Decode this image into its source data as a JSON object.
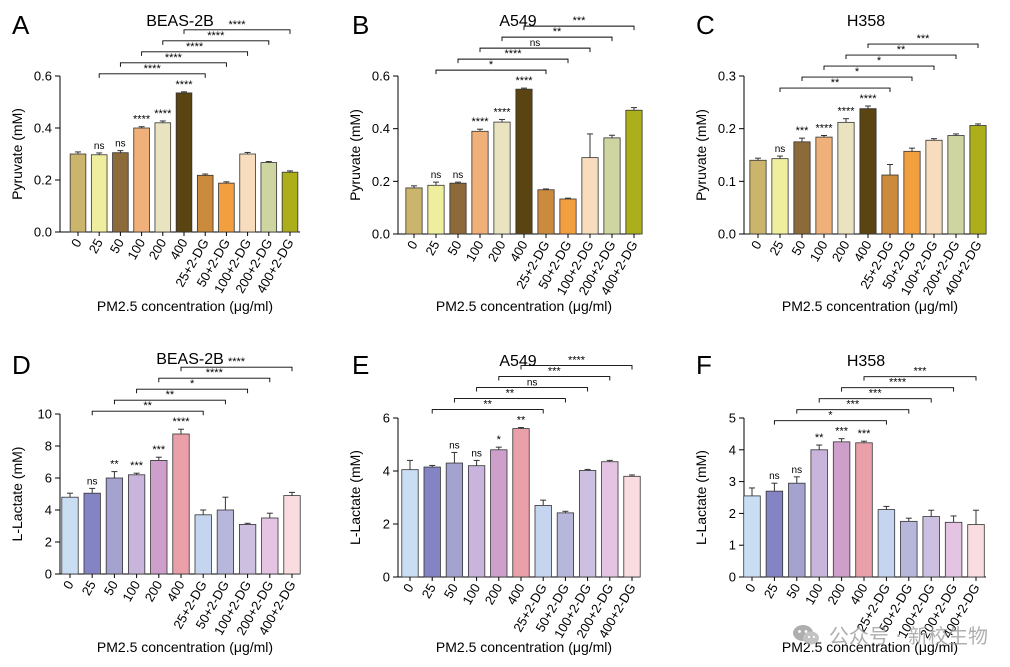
{
  "figure": {
    "watermark_text": "公众号 · 新校生物",
    "panels": [
      {
        "letter": "A",
        "chart_data": {
          "type": "bar",
          "title": "BEAS-2B",
          "ylabel": "Pyruvate (mM)",
          "xlabel": "PM2.5 concentration (μg/ml)",
          "ylim": [
            0,
            0.6
          ],
          "yticks": [
            0.0,
            0.2,
            0.4,
            0.6
          ],
          "ytick_labels": [
            "0.0",
            "0.2",
            "0.4",
            "0.6"
          ],
          "categories": [
            "0",
            "25",
            "50",
            "100",
            "200",
            "400",
            "25+2-DG",
            "50+2-DG",
            "100+2-DG",
            "200+2-DG",
            "400+2-DG"
          ],
          "values": [
            0.3,
            0.297,
            0.305,
            0.4,
            0.42,
            0.535,
            0.218,
            0.188,
            0.3,
            0.267,
            0.23
          ],
          "errors": [
            0.008,
            0.007,
            0.008,
            0.005,
            0.007,
            0.004,
            0.005,
            0.005,
            0.006,
            0.004,
            0.005
          ],
          "colors": [
            "#CBB46C",
            "#EFEE9E",
            "#8C6A3A",
            "#F0B079",
            "#E9E3C0",
            "#5A4412",
            "#CC8A3C",
            "#F29F3F",
            "#F7DCBD",
            "#CFD5A0",
            "#ACAE1C"
          ],
          "bar_labels": [
            "",
            "ns",
            "ns",
            "****",
            "****",
            "****",
            "",
            "",
            "",
            "",
            ""
          ],
          "brackets": [
            {
              "from": 1,
              "to": 6,
              "label": "****"
            },
            {
              "from": 2,
              "to": 7,
              "label": "****"
            },
            {
              "from": 3,
              "to": 8,
              "label": "****"
            },
            {
              "from": 4,
              "to": 9,
              "label": "****"
            },
            {
              "from": 5,
              "to": 10,
              "label": "****"
            }
          ]
        }
      },
      {
        "letter": "B",
        "chart_data": {
          "type": "bar",
          "title": "A549",
          "ylabel": "Pyruvate (mM)",
          "xlabel": "PM2.5 concentration (μg/ml)",
          "ylim": [
            0,
            0.6
          ],
          "yticks": [
            0.0,
            0.2,
            0.4,
            0.6
          ],
          "ytick_labels": [
            "0.0",
            "0.2",
            "0.4",
            "0.6"
          ],
          "categories": [
            "0",
            "25",
            "50",
            "100",
            "200",
            "400",
            "25+2-DG",
            "50+2-DG",
            "100+2-DG",
            "200+2-DG",
            "400+2-DG"
          ],
          "values": [
            0.175,
            0.185,
            0.193,
            0.39,
            0.425,
            0.55,
            0.168,
            0.133,
            0.29,
            0.365,
            0.47
          ],
          "errors": [
            0.008,
            0.012,
            0.004,
            0.008,
            0.01,
            0.004,
            0.003,
            0.003,
            0.09,
            0.01,
            0.01
          ],
          "colors": [
            "#CBB46C",
            "#EFEE9E",
            "#8C6A3A",
            "#F0B079",
            "#E9E3C0",
            "#5A4412",
            "#CC8A3C",
            "#F29F3F",
            "#F7DCBD",
            "#CFD5A0",
            "#ACAE1C"
          ],
          "bar_labels": [
            "",
            "ns",
            "ns",
            "****",
            "****",
            "****",
            "",
            "",
            "",
            "",
            ""
          ],
          "brackets": [
            {
              "from": 1,
              "to": 6,
              "label": "*"
            },
            {
              "from": 2,
              "to": 7,
              "label": "****"
            },
            {
              "from": 3,
              "to": 8,
              "label": "ns"
            },
            {
              "from": 4,
              "to": 9,
              "label": "**"
            },
            {
              "from": 5,
              "to": 10,
              "label": "***"
            }
          ]
        }
      },
      {
        "letter": "C",
        "chart_data": {
          "type": "bar",
          "title": "H358",
          "ylabel": "Pyruvate (mM)",
          "xlabel": "PM2.5 concentration (μg/ml)",
          "ylim": [
            0,
            0.3
          ],
          "yticks": [
            0.0,
            0.1,
            0.2,
            0.3
          ],
          "ytick_labels": [
            "0.0",
            "0.1",
            "0.2",
            "0.3"
          ],
          "categories": [
            "0",
            "25",
            "50",
            "100",
            "200",
            "400",
            "25+2-DG",
            "50+2-DG",
            "100+2-DG",
            "200+2-DG",
            "400+2-DG"
          ],
          "values": [
            0.14,
            0.143,
            0.175,
            0.184,
            0.212,
            0.238,
            0.112,
            0.157,
            0.178,
            0.187,
            0.206
          ],
          "errors": [
            0.004,
            0.005,
            0.007,
            0.003,
            0.007,
            0.005,
            0.02,
            0.006,
            0.003,
            0.003,
            0.003
          ],
          "colors": [
            "#CBB46C",
            "#EFEE9E",
            "#8C6A3A",
            "#F0B079",
            "#E9E3C0",
            "#5A4412",
            "#CC8A3C",
            "#F29F3F",
            "#F7DCBD",
            "#CFD5A0",
            "#ACAE1C"
          ],
          "bar_labels": [
            "",
            "ns",
            "***",
            "****",
            "****",
            "****",
            "",
            "",
            "",
            "",
            ""
          ],
          "brackets": [
            {
              "from": 1,
              "to": 6,
              "label": "**"
            },
            {
              "from": 2,
              "to": 7,
              "label": "*"
            },
            {
              "from": 3,
              "to": 8,
              "label": "*"
            },
            {
              "from": 4,
              "to": 9,
              "label": "**"
            },
            {
              "from": 5,
              "to": 10,
              "label": "***"
            }
          ]
        }
      },
      {
        "letter": "D",
        "chart_data": {
          "type": "bar",
          "title": "BEAS-2B",
          "ylabel": "L-Lactate (mM)",
          "xlabel": "PM2.5 concentration (μg/ml)",
          "ylim": [
            0,
            10
          ],
          "yticks": [
            0,
            2,
            4,
            6,
            8,
            10
          ],
          "ytick_labels": [
            "0",
            "2",
            "4",
            "6",
            "8",
            "10"
          ],
          "categories": [
            "0",
            "25",
            "50",
            "100",
            "200",
            "400",
            "25+2-DG",
            "50+2-DG",
            "100+2-DG",
            "200+2-DG",
            "400+2-DG"
          ],
          "values": [
            4.8,
            5.05,
            6.0,
            6.2,
            7.1,
            8.75,
            3.7,
            4.0,
            3.1,
            3.5,
            4.9
          ],
          "errors": [
            0.25,
            0.3,
            0.4,
            0.1,
            0.2,
            0.3,
            0.3,
            0.8,
            0.07,
            0.3,
            0.2
          ],
          "colors": [
            "#C9DDF3",
            "#8484C4",
            "#A4A2CE",
            "#C9B5DB",
            "#CF9FCC",
            "#EAA0A8",
            "#C5D4EF",
            "#B7B7DC",
            "#CDBFE0",
            "#E4C4E2",
            "#F8DCE0"
          ],
          "bar_labels": [
            "",
            "ns",
            "**",
            "***",
            "***",
            "****",
            "",
            "",
            "",
            "",
            ""
          ],
          "brackets": [
            {
              "from": 1,
              "to": 6,
              "label": "**"
            },
            {
              "from": 2,
              "to": 7,
              "label": "**"
            },
            {
              "from": 3,
              "to": 8,
              "label": "*"
            },
            {
              "from": 4,
              "to": 9,
              "label": "****"
            },
            {
              "from": 5,
              "to": 10,
              "label": "****"
            }
          ]
        }
      },
      {
        "letter": "E",
        "chart_data": {
          "type": "bar",
          "title": "A549",
          "ylabel": "L-Lactate (mM)",
          "xlabel": "PM2.5 concentration (μg/ml)",
          "ylim": [
            0,
            6
          ],
          "yticks": [
            0,
            2,
            4,
            6
          ],
          "ytick_labels": [
            "0",
            "2",
            "4",
            "6"
          ],
          "categories": [
            "0",
            "25",
            "50",
            "100",
            "200",
            "400",
            "25+2-DG",
            "50+2-DG",
            "100+2-DG",
            "200+2-DG",
            "400+2-DG"
          ],
          "values": [
            4.05,
            4.15,
            4.3,
            4.2,
            4.8,
            5.6,
            2.7,
            2.42,
            4.02,
            4.35,
            3.8
          ],
          "errors": [
            0.35,
            0.06,
            0.4,
            0.2,
            0.1,
            0.04,
            0.2,
            0.06,
            0.04,
            0.05,
            0.05
          ],
          "colors": [
            "#C9DDF3",
            "#8484C4",
            "#A4A2CE",
            "#C9B5DB",
            "#CF9FCC",
            "#EAA0A8",
            "#C5D4EF",
            "#B7B7DC",
            "#CDBFE0",
            "#E4C4E2",
            "#F8DCE0"
          ],
          "bar_labels": [
            "",
            "",
            "ns",
            "ns",
            "*",
            "**",
            "",
            "",
            "",
            "",
            ""
          ],
          "brackets": [
            {
              "from": 1,
              "to": 6,
              "label": "**"
            },
            {
              "from": 2,
              "to": 7,
              "label": "**"
            },
            {
              "from": 3,
              "to": 8,
              "label": "ns"
            },
            {
              "from": 4,
              "to": 9,
              "label": "***"
            },
            {
              "from": 5,
              "to": 10,
              "label": "****"
            }
          ]
        }
      },
      {
        "letter": "F",
        "chart_data": {
          "type": "bar",
          "title": "H358",
          "ylabel": "L-Lactate (mM)",
          "xlabel": "PM2.5 concentration (μg/ml)",
          "ylim": [
            0,
            5
          ],
          "yticks": [
            0,
            1,
            2,
            3,
            4,
            5
          ],
          "ytick_labels": [
            "0",
            "1",
            "2",
            "3",
            "4",
            "5"
          ],
          "categories": [
            "0",
            "25",
            "50",
            "100",
            "200",
            "400",
            "25+2-DG",
            "50+2-DG",
            "100+2-DG",
            "200+2-DG",
            "400+2-DG"
          ],
          "values": [
            2.55,
            2.7,
            2.95,
            4.0,
            4.25,
            4.22,
            2.12,
            1.75,
            1.9,
            1.72,
            1.65
          ],
          "errors": [
            0.25,
            0.25,
            0.2,
            0.15,
            0.1,
            0.05,
            0.1,
            0.1,
            0.2,
            0.2,
            0.45
          ],
          "colors": [
            "#C9DDF3",
            "#8484C4",
            "#A4A2CE",
            "#C9B5DB",
            "#CF9FCC",
            "#EAA0A8",
            "#C5D4EF",
            "#B7B7DC",
            "#CDBFE0",
            "#E4C4E2",
            "#F8DCE0"
          ],
          "bar_labels": [
            "",
            "ns",
            "ns",
            "**",
            "***",
            "***",
            "",
            "",
            "",
            "",
            ""
          ],
          "brackets": [
            {
              "from": 1,
              "to": 6,
              "label": "*"
            },
            {
              "from": 2,
              "to": 7,
              "label": "***"
            },
            {
              "from": 3,
              "to": 8,
              "label": "***"
            },
            {
              "from": 4,
              "to": 9,
              "label": "****"
            },
            {
              "from": 5,
              "to": 10,
              "label": "***"
            }
          ]
        }
      }
    ]
  }
}
